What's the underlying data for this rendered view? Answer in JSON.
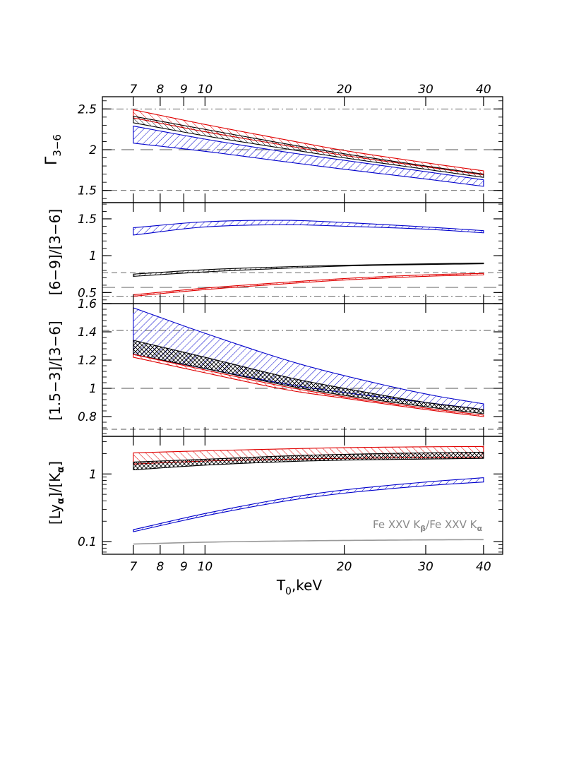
{
  "figure": {
    "xlabel": "T",
    "xlabel_sub": "0",
    "xlabel_unit": ",keV",
    "xscale": "log",
    "xlim": [
      6.0,
      44.0
    ],
    "xticks": [
      7,
      8,
      9,
      10,
      20,
      30,
      40
    ],
    "xtick_labels": [
      "7",
      "8",
      "9",
      "10",
      "20",
      "30",
      "40"
    ],
    "colors": {
      "red": "#e00000",
      "black": "#000000",
      "blue": "#0000cc",
      "gray": "#999999",
      "refline": "#555555"
    }
  },
  "chart_data": [
    {
      "type": "area",
      "ylabel": "Γ",
      "ylabel_sub": "3−6",
      "yscale": "linear",
      "ylim": [
        1.35,
        2.65
      ],
      "yticks": [
        1.5,
        2,
        2.5
      ],
      "ytick_labels": [
        "1.5",
        "2",
        "2.5"
      ],
      "x": [
        7,
        10,
        15,
        20,
        30,
        40
      ],
      "bands": [
        {
          "color": "red",
          "hatch": "backslash",
          "lower": [
            2.39,
            2.22,
            2.05,
            1.93,
            1.79,
            1.69
          ],
          "upper": [
            2.49,
            2.31,
            2.12,
            1.99,
            1.84,
            1.74
          ]
        },
        {
          "color": "black",
          "hatch": "backslash",
          "lower": [
            2.33,
            2.17,
            2.01,
            1.9,
            1.76,
            1.66
          ],
          "upper": [
            2.41,
            2.25,
            2.07,
            1.95,
            1.8,
            1.7
          ]
        },
        {
          "color": "blue",
          "hatch": "slash",
          "lower": [
            2.08,
            1.98,
            1.85,
            1.76,
            1.64,
            1.55
          ],
          "upper": [
            2.29,
            2.13,
            1.97,
            1.87,
            1.73,
            1.63
          ]
        }
      ],
      "reflines": [
        {
          "y": 2.5,
          "style": "dashdot"
        },
        {
          "y": 2.0,
          "style": "longdash"
        },
        {
          "y": 1.5,
          "style": "dash"
        }
      ]
    },
    {
      "type": "area",
      "ylabel": "[6−9]/[3−6]",
      "yscale": "linear",
      "ylim": [
        0.35,
        1.72
      ],
      "yticks": [
        0.5,
        1,
        1.5
      ],
      "ytick_labels": [
        "0.5",
        "1",
        "1.5"
      ],
      "x": [
        7,
        10,
        15,
        20,
        30,
        40
      ],
      "bands": [
        {
          "color": "blue",
          "hatch": "slash",
          "lower": [
            1.28,
            1.39,
            1.42,
            1.4,
            1.36,
            1.31
          ],
          "upper": [
            1.38,
            1.46,
            1.48,
            1.45,
            1.39,
            1.34
          ]
        },
        {
          "color": "black",
          "hatch": "slash",
          "lower": [
            0.72,
            0.78,
            0.83,
            0.86,
            0.88,
            0.89
          ],
          "upper": [
            0.75,
            0.81,
            0.85,
            0.87,
            0.89,
            0.9
          ]
        },
        {
          "color": "red",
          "hatch": "backslash",
          "lower": [
            0.45,
            0.54,
            0.62,
            0.67,
            0.72,
            0.74
          ],
          "upper": [
            0.47,
            0.56,
            0.64,
            0.69,
            0.74,
            0.76
          ]
        }
      ],
      "reflines": [
        {
          "y": 0.77,
          "style": "dash"
        },
        {
          "y": 0.57,
          "style": "longdash"
        },
        {
          "y": 0.45,
          "style": "dashdot"
        }
      ]
    },
    {
      "type": "area",
      "ylabel": "[1.5−3]/[3−6]",
      "yscale": "linear",
      "ylim": [
        0.66,
        1.6
      ],
      "yticks": [
        0.8,
        1,
        1.2,
        1.4,
        1.6
      ],
      "ytick_labels": [
        "0.8",
        "1",
        "1.2",
        "1.4",
        "1.6"
      ],
      "x": [
        7,
        10,
        15,
        20,
        30,
        40
      ],
      "bands": [
        {
          "color": "blue",
          "hatch": "slash",
          "lower": [
            1.24,
            1.14,
            1.03,
            0.97,
            0.9,
            0.85
          ],
          "upper": [
            1.57,
            1.39,
            1.2,
            1.09,
            0.96,
            0.89
          ]
        },
        {
          "color": "black",
          "hatch": "cross",
          "lower": [
            1.24,
            1.14,
            1.02,
            0.95,
            0.87,
            0.82
          ],
          "upper": [
            1.34,
            1.22,
            1.08,
            1.0,
            0.9,
            0.85
          ]
        },
        {
          "color": "red",
          "hatch": "backslash",
          "lower": [
            1.22,
            1.11,
            0.99,
            0.93,
            0.85,
            0.8
          ],
          "upper": [
            1.24,
            1.13,
            1.01,
            0.94,
            0.86,
            0.81
          ]
        }
      ],
      "reflines": [
        {
          "y": 1.41,
          "style": "dashdot"
        },
        {
          "y": 1.0,
          "style": "longdash"
        },
        {
          "y": 0.71,
          "style": "dash"
        }
      ]
    },
    {
      "type": "area",
      "ylabel": "[Lyα]/[Kα]",
      "yscale": "log",
      "ylim": [
        0.065,
        3.6
      ],
      "yticks": [
        0.1,
        1
      ],
      "ytick_labels": [
        "0.1",
        "1"
      ],
      "x": [
        7,
        10,
        15,
        20,
        30,
        40
      ],
      "bands": [
        {
          "color": "red",
          "hatch": "backslash",
          "lower": [
            1.4,
            1.55,
            1.65,
            1.7,
            1.75,
            1.78
          ],
          "upper": [
            2.05,
            2.2,
            2.35,
            2.45,
            2.52,
            2.55
          ]
        },
        {
          "color": "black",
          "hatch": "cross",
          "lower": [
            1.15,
            1.35,
            1.52,
            1.6,
            1.66,
            1.7
          ],
          "upper": [
            1.5,
            1.65,
            1.85,
            1.95,
            2.05,
            2.1
          ]
        },
        {
          "color": "blue",
          "hatch": "slash",
          "lower": [
            0.14,
            0.24,
            0.4,
            0.52,
            0.67,
            0.76
          ],
          "upper": [
            0.15,
            0.26,
            0.44,
            0.58,
            0.76,
            0.88
          ]
        }
      ],
      "lines": [
        {
          "color": "gray",
          "y": [
            0.092,
            0.098,
            0.102,
            0.104,
            0.106,
            0.107
          ]
        }
      ],
      "annotation": {
        "text_pre": "Fe XXV K",
        "sub_1": "β",
        "text_mid": "/Fe XXV K",
        "sub_2": "α"
      }
    }
  ]
}
